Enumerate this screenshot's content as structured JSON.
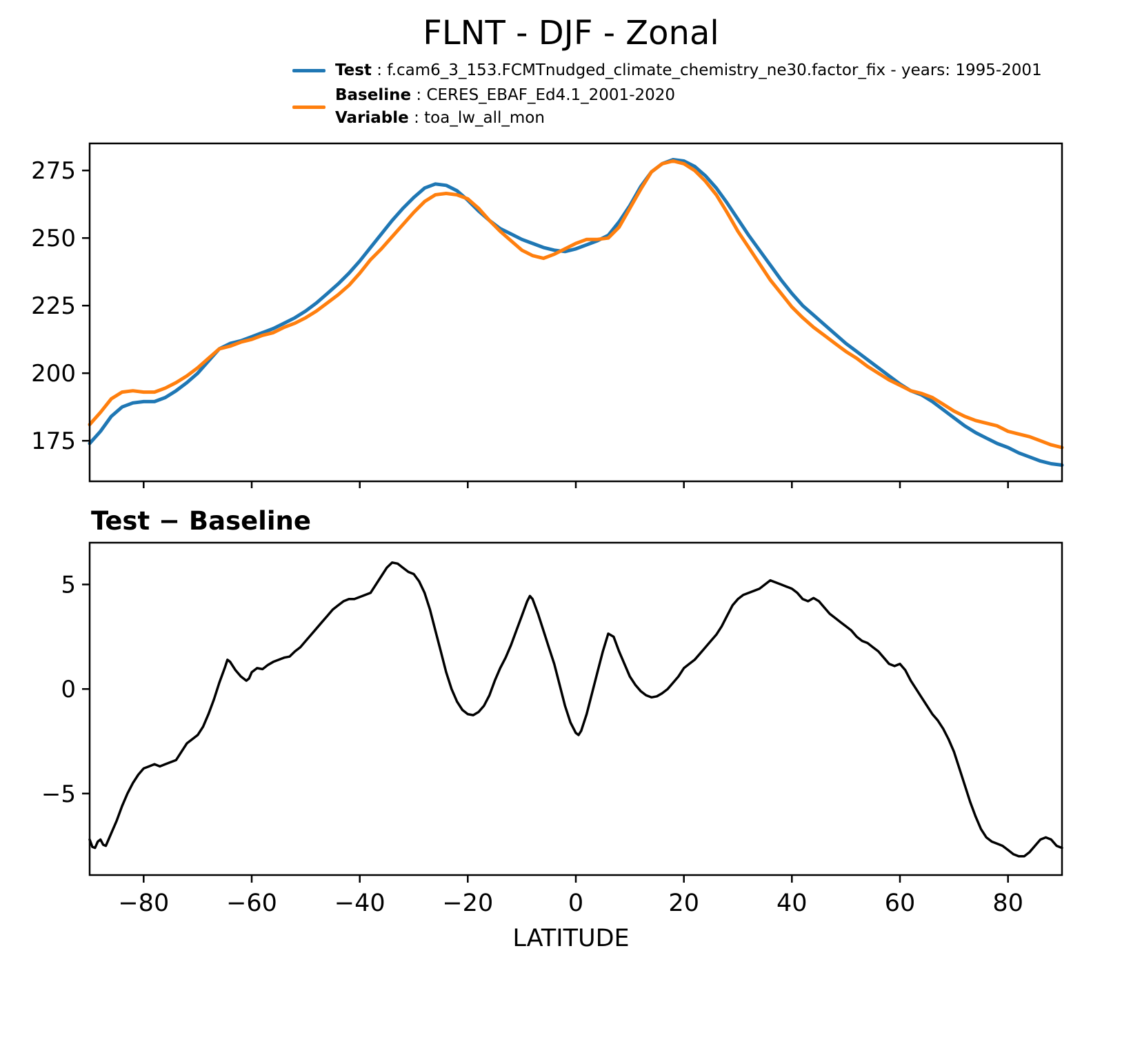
{
  "title": "FLNT - DJF - Zonal",
  "legend": {
    "items": [
      {
        "label": "Test",
        "sep": " : ",
        "text": "f.cam6_3_153.FCMTnudged_climate_chemistry_ne30.factor_fix - years: 1995-2001",
        "color": "#1f77b4"
      },
      {
        "label": "Baseline",
        "sep": " : ",
        "text": "CERES_EBAF_Ed4.1_2001-2020",
        "color": "#ff7f0e"
      },
      {
        "label": "Variable",
        "sep": " : ",
        "text": "toa_lw_all_mon"
      }
    ]
  },
  "colors": {
    "test": "#1f77b4",
    "baseline": "#ff7f0e",
    "diff": "#000000"
  },
  "chart_data": [
    {
      "type": "line",
      "title": "FLNT - DJF - Zonal",
      "xlabel": "",
      "ylabel": "",
      "xlim": [
        -90,
        90
      ],
      "ylim": [
        160,
        285
      ],
      "xticks": [
        -80,
        -60,
        -40,
        -20,
        0,
        20,
        40,
        60,
        80
      ],
      "yticks": [
        175,
        200,
        225,
        250,
        275
      ],
      "xtick_labels": false,
      "grid": false,
      "legend_position": "top-left-above",
      "x": [
        -90,
        -88,
        -86,
        -84,
        -82,
        -80,
        -78,
        -76,
        -74,
        -72,
        -70,
        -68,
        -66,
        -64,
        -62,
        -60,
        -58,
        -56,
        -54,
        -52,
        -50,
        -48,
        -46,
        -44,
        -42,
        -40,
        -38,
        -36,
        -34,
        -32,
        -30,
        -28,
        -26,
        -24,
        -22,
        -20,
        -18,
        -16,
        -14,
        -12,
        -10,
        -8,
        -6,
        -4,
        -2,
        0,
        2,
        4,
        6,
        8,
        10,
        12,
        14,
        16,
        18,
        20,
        22,
        24,
        26,
        28,
        30,
        32,
        34,
        36,
        38,
        40,
        42,
        44,
        46,
        48,
        50,
        52,
        54,
        56,
        58,
        60,
        62,
        64,
        66,
        68,
        70,
        72,
        74,
        76,
        78,
        80,
        82,
        84,
        86,
        88,
        90
      ],
      "series": [
        {
          "name": "Test",
          "color": "#1f77b4",
          "values": [
            174,
            178.5,
            184,
            187.5,
            189,
            189.5,
            189.5,
            191,
            193.5,
            196.5,
            200,
            204.5,
            209,
            211,
            212,
            213.5,
            215,
            216.5,
            218.5,
            220.5,
            223,
            226,
            229.5,
            233,
            237,
            241.5,
            246.5,
            251.5,
            256.5,
            261,
            265,
            268.5,
            270,
            269.5,
            267.5,
            264,
            260,
            256.5,
            253.5,
            251.5,
            249.5,
            248,
            246.5,
            245.5,
            245,
            246,
            247.5,
            249,
            251,
            256,
            262,
            269,
            274.5,
            277.5,
            279,
            278.5,
            276.5,
            273,
            268.5,
            263,
            257,
            251,
            245.5,
            240,
            234.5,
            229.5,
            225,
            221.5,
            218,
            214.5,
            211,
            208,
            205,
            202,
            199,
            196,
            193.5,
            192,
            189.5,
            186.5,
            183.5,
            180.5,
            178,
            176,
            174,
            172.5,
            170.5,
            169,
            167.5,
            166.5,
            166
          ]
        },
        {
          "name": "Baseline",
          "color": "#ff7f0e",
          "values": [
            181,
            185.5,
            190.5,
            193,
            193.5,
            193,
            193,
            194.5,
            196.5,
            199,
            202,
            205.5,
            209,
            210,
            211.5,
            212.5,
            214,
            215,
            217,
            218.5,
            220.5,
            223,
            226,
            229,
            232.5,
            237,
            242,
            246,
            250.5,
            255,
            259.5,
            263.5,
            266,
            266.5,
            266,
            264.5,
            261,
            256.5,
            252.5,
            249,
            245.5,
            243.5,
            242.5,
            244,
            246,
            248,
            249.5,
            249.5,
            250,
            254,
            261,
            268,
            274.5,
            277.5,
            278.5,
            277.5,
            275,
            271,
            266,
            259.5,
            252.5,
            246.5,
            240.5,
            234.5,
            229.5,
            224.5,
            220.5,
            217,
            214,
            211,
            208,
            205.5,
            202.5,
            200,
            197.5,
            195.5,
            193.5,
            192.5,
            191,
            188.5,
            186,
            184,
            182.5,
            181.5,
            180.5,
            178.5,
            177.5,
            176.5,
            175,
            173.5,
            172.5
          ]
        }
      ]
    },
    {
      "type": "line",
      "title": "Test − Baseline",
      "xlabel": "LATITUDE",
      "ylabel": "",
      "xlim": [
        -90,
        90
      ],
      "ylim": [
        -8.9,
        7
      ],
      "xticks": [
        -80,
        -60,
        -40,
        -20,
        0,
        20,
        40,
        60,
        80
      ],
      "yticks": [
        -5,
        0,
        5
      ],
      "xtick_labels": true,
      "grid": false,
      "series": [
        {
          "name": "Test minus Baseline",
          "color": "#000000",
          "points": [
            [
              -90,
              -7.2
            ],
            [
              -89.5,
              -7.55
            ],
            [
              -89,
              -7.6
            ],
            [
              -88.5,
              -7.3
            ],
            [
              -88,
              -7.2
            ],
            [
              -87.5,
              -7.45
            ],
            [
              -87,
              -7.5
            ],
            [
              -86.5,
              -7.2
            ],
            [
              -86,
              -6.9
            ],
            [
              -85,
              -6.3
            ],
            [
              -84,
              -5.6
            ],
            [
              -83,
              -5
            ],
            [
              -82,
              -4.5
            ],
            [
              -81,
              -4.1
            ],
            [
              -80,
              -3.8
            ],
            [
              -79,
              -3.7
            ],
            [
              -78,
              -3.6
            ],
            [
              -77,
              -3.7
            ],
            [
              -76,
              -3.6
            ],
            [
              -75,
              -3.5
            ],
            [
              -74,
              -3.4
            ],
            [
              -73,
              -3
            ],
            [
              -72,
              -2.6
            ],
            [
              -71,
              -2.4
            ],
            [
              -70,
              -2.2
            ],
            [
              -69,
              -1.8
            ],
            [
              -68,
              -1.2
            ],
            [
              -67,
              -0.5
            ],
            [
              -66,
              0.3
            ],
            [
              -65,
              1
            ],
            [
              -64.5,
              1.4
            ],
            [
              -64,
              1.3
            ],
            [
              -63,
              0.9
            ],
            [
              -62,
              0.6
            ],
            [
              -61,
              0.4
            ],
            [
              -60.5,
              0.5
            ],
            [
              -60,
              0.8
            ],
            [
              -59,
              1
            ],
            [
              -58,
              0.95
            ],
            [
              -57,
              1.15
            ],
            [
              -56,
              1.3
            ],
            [
              -55,
              1.4
            ],
            [
              -54,
              1.5
            ],
            [
              -53,
              1.55
            ],
            [
              -52,
              1.8
            ],
            [
              -51,
              2
            ],
            [
              -50,
              2.3
            ],
            [
              -49,
              2.6
            ],
            [
              -48,
              2.9
            ],
            [
              -47,
              3.2
            ],
            [
              -46,
              3.5
            ],
            [
              -45,
              3.8
            ],
            [
              -44,
              4
            ],
            [
              -43,
              4.2
            ],
            [
              -42,
              4.3
            ],
            [
              -41,
              4.3
            ],
            [
              -40,
              4.4
            ],
            [
              -39,
              4.5
            ],
            [
              -38,
              4.6
            ],
            [
              -37,
              5
            ],
            [
              -36,
              5.4
            ],
            [
              -35,
              5.8
            ],
            [
              -34,
              6.05
            ],
            [
              -33,
              6
            ],
            [
              -32,
              5.8
            ],
            [
              -31,
              5.6
            ],
            [
              -30,
              5.5
            ],
            [
              -29,
              5.15
            ],
            [
              -28,
              4.6
            ],
            [
              -27,
              3.8
            ],
            [
              -26,
              2.8
            ],
            [
              -25,
              1.8
            ],
            [
              -24,
              0.8
            ],
            [
              -23,
              0
            ],
            [
              -22,
              -0.6
            ],
            [
              -21,
              -1
            ],
            [
              -20,
              -1.2
            ],
            [
              -19,
              -1.25
            ],
            [
              -18,
              -1.1
            ],
            [
              -17,
              -0.8
            ],
            [
              -16,
              -0.3
            ],
            [
              -15,
              0.4
            ],
            [
              -14,
              1
            ],
            [
              -13,
              1.5
            ],
            [
              -12,
              2.1
            ],
            [
              -11,
              2.8
            ],
            [
              -10,
              3.5
            ],
            [
              -9,
              4.2
            ],
            [
              -8.5,
              4.45
            ],
            [
              -8,
              4.3
            ],
            [
              -7,
              3.6
            ],
            [
              -6,
              2.8
            ],
            [
              -5,
              2
            ],
            [
              -4,
              1.2
            ],
            [
              -3,
              0.2
            ],
            [
              -2,
              -0.8
            ],
            [
              -1,
              -1.6
            ],
            [
              0,
              -2.1
            ],
            [
              0.5,
              -2.2
            ],
            [
              1,
              -2
            ],
            [
              2,
              -1.2
            ],
            [
              3,
              -0.2
            ],
            [
              4,
              0.8
            ],
            [
              5,
              1.8
            ],
            [
              6,
              2.65
            ],
            [
              7,
              2.5
            ],
            [
              8,
              1.8
            ],
            [
              9,
              1.2
            ],
            [
              10,
              0.6
            ],
            [
              11,
              0.2
            ],
            [
              12,
              -0.1
            ],
            [
              13,
              -0.3
            ],
            [
              14,
              -0.4
            ],
            [
              15,
              -0.35
            ],
            [
              16,
              -0.2
            ],
            [
              17,
              0
            ],
            [
              18,
              0.3
            ],
            [
              19,
              0.6
            ],
            [
              20,
              1
            ],
            [
              21,
              1.2
            ],
            [
              22,
              1.4
            ],
            [
              23,
              1.7
            ],
            [
              24,
              2
            ],
            [
              25,
              2.3
            ],
            [
              26,
              2.6
            ],
            [
              27,
              3
            ],
            [
              28,
              3.5
            ],
            [
              29,
              4
            ],
            [
              30,
              4.3
            ],
            [
              31,
              4.5
            ],
            [
              32,
              4.6
            ],
            [
              33,
              4.7
            ],
            [
              34,
              4.8
            ],
            [
              35,
              5
            ],
            [
              36,
              5.2
            ],
            [
              37,
              5.1
            ],
            [
              38,
              5
            ],
            [
              39,
              4.9
            ],
            [
              40,
              4.8
            ],
            [
              41,
              4.6
            ],
            [
              42,
              4.3
            ],
            [
              43,
              4.2
            ],
            [
              44,
              4.35
            ],
            [
              45,
              4.2
            ],
            [
              46,
              3.9
            ],
            [
              47,
              3.6
            ],
            [
              48,
              3.4
            ],
            [
              49,
              3.2
            ],
            [
              50,
              3
            ],
            [
              51,
              2.8
            ],
            [
              52,
              2.5
            ],
            [
              53,
              2.3
            ],
            [
              54,
              2.2
            ],
            [
              55,
              2
            ],
            [
              56,
              1.8
            ],
            [
              57,
              1.5
            ],
            [
              58,
              1.2
            ],
            [
              59,
              1.1
            ],
            [
              60,
              1.2
            ],
            [
              61,
              0.9
            ],
            [
              62,
              0.4
            ],
            [
              63,
              0
            ],
            [
              64,
              -0.4
            ],
            [
              65,
              -0.8
            ],
            [
              66,
              -1.2
            ],
            [
              67,
              -1.5
            ],
            [
              68,
              -1.9
            ],
            [
              69,
              -2.4
            ],
            [
              70,
              -3
            ],
            [
              71,
              -3.8
            ],
            [
              72,
              -4.6
            ],
            [
              73,
              -5.4
            ],
            [
              74,
              -6.1
            ],
            [
              75,
              -6.7
            ],
            [
              76,
              -7.1
            ],
            [
              77,
              -7.3
            ],
            [
              78,
              -7.4
            ],
            [
              79,
              -7.5
            ],
            [
              80,
              -7.7
            ],
            [
              81,
              -7.9
            ],
            [
              82,
              -8
            ],
            [
              83,
              -8
            ],
            [
              84,
              -7.8
            ],
            [
              85,
              -7.5
            ],
            [
              86,
              -7.2
            ],
            [
              87,
              -7.1
            ],
            [
              88,
              -7.2
            ],
            [
              89,
              -7.5
            ],
            [
              90,
              -7.6
            ]
          ]
        }
      ]
    }
  ]
}
